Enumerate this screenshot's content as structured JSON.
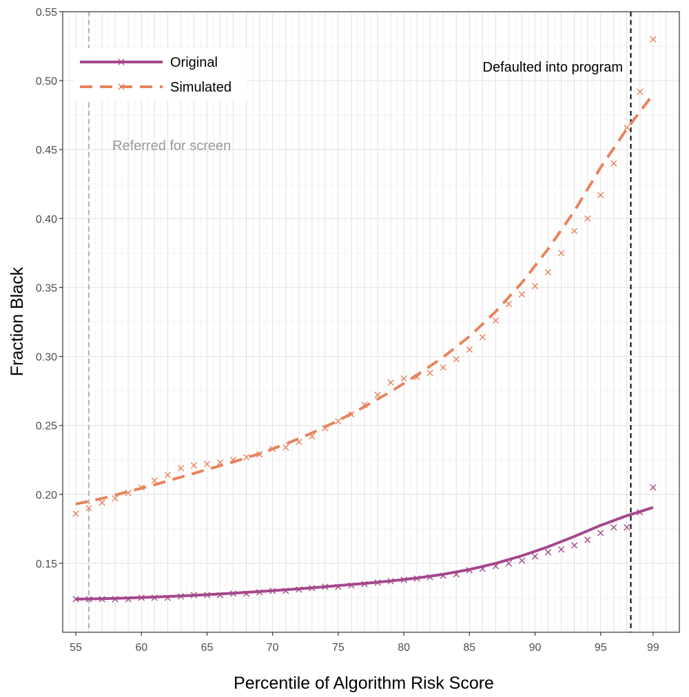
{
  "chart_data": {
    "type": "line",
    "xlabel": "Percentile of Algorithm Risk Score",
    "ylabel": "Fraction Black",
    "xlim": [
      54,
      101
    ],
    "ylim": [
      0.1,
      0.55
    ],
    "x_ticks": [
      55,
      60,
      65,
      70,
      75,
      80,
      85,
      90,
      95,
      99
    ],
    "y_ticks": [
      0.15,
      0.2,
      0.25,
      0.3,
      0.35,
      0.4,
      0.45,
      0.5,
      0.55
    ],
    "y_tick_labels": [
      "0.15",
      "0.20",
      "0.25",
      "0.30",
      "0.35",
      "0.40",
      "0.45",
      "0.50",
      "0.55"
    ],
    "grid": true,
    "legend_position": "top-left",
    "annotations": [
      {
        "label": "Referred for screen",
        "x": 56,
        "color": "#999999",
        "line_color": "#aaaaaa"
      },
      {
        "label": "Defaulted into program",
        "x": 97.3,
        "color": "#000000",
        "line_color": "#000000"
      }
    ],
    "series": [
      {
        "name": "Original",
        "color": "#a4478c",
        "line_style": "solid",
        "points": [
          [
            55,
            0.124
          ],
          [
            56,
            0.124
          ],
          [
            57,
            0.124
          ],
          [
            58,
            0.124
          ],
          [
            59,
            0.124
          ],
          [
            60,
            0.125
          ],
          [
            61,
            0.125
          ],
          [
            62,
            0.125
          ],
          [
            63,
            0.126
          ],
          [
            64,
            0.127
          ],
          [
            65,
            0.127
          ],
          [
            66,
            0.127
          ],
          [
            67,
            0.128
          ],
          [
            68,
            0.128
          ],
          [
            69,
            0.129
          ],
          [
            70,
            0.13
          ],
          [
            71,
            0.13
          ],
          [
            72,
            0.131
          ],
          [
            73,
            0.132
          ],
          [
            74,
            0.133
          ],
          [
            75,
            0.133
          ],
          [
            76,
            0.134
          ],
          [
            77,
            0.135
          ],
          [
            78,
            0.136
          ],
          [
            79,
            0.137
          ],
          [
            80,
            0.138
          ],
          [
            81,
            0.139
          ],
          [
            82,
            0.14
          ],
          [
            83,
            0.141
          ],
          [
            84,
            0.142
          ],
          [
            85,
            0.145
          ],
          [
            86,
            0.146
          ],
          [
            87,
            0.148
          ],
          [
            88,
            0.15
          ],
          [
            89,
            0.152
          ],
          [
            90,
            0.155
          ],
          [
            91,
            0.158
          ],
          [
            92,
            0.16
          ],
          [
            93,
            0.163
          ],
          [
            94,
            0.167
          ],
          [
            95,
            0.172
          ],
          [
            96,
            0.176
          ],
          [
            97,
            0.176
          ],
          [
            98,
            0.187
          ],
          [
            99,
            0.205
          ]
        ],
        "fit": [
          [
            55,
            0.124
          ],
          [
            57,
            0.1243
          ],
          [
            59,
            0.1248
          ],
          [
            61,
            0.1255
          ],
          [
            63,
            0.1263
          ],
          [
            65,
            0.1272
          ],
          [
            67,
            0.1283
          ],
          [
            69,
            0.1295
          ],
          [
            71,
            0.1308
          ],
          [
            73,
            0.1322
          ],
          [
            75,
            0.1338
          ],
          [
            77,
            0.1354
          ],
          [
            79,
            0.1372
          ],
          [
            81,
            0.1393
          ],
          [
            83,
            0.142
          ],
          [
            85,
            0.1455
          ],
          [
            87,
            0.15
          ],
          [
            89,
            0.1555
          ],
          [
            91,
            0.162
          ],
          [
            93,
            0.1695
          ],
          [
            95,
            0.1775
          ],
          [
            97,
            0.1845
          ],
          [
            99,
            0.1905
          ]
        ]
      },
      {
        "name": "Simulated",
        "color": "#e8825b",
        "line_style": "dashed",
        "points": [
          [
            55,
            0.186
          ],
          [
            56,
            0.19
          ],
          [
            57,
            0.194
          ],
          [
            58,
            0.197
          ],
          [
            59,
            0.201
          ],
          [
            60,
            0.205
          ],
          [
            61,
            0.21
          ],
          [
            62,
            0.214
          ],
          [
            63,
            0.219
          ],
          [
            64,
            0.221
          ],
          [
            65,
            0.222
          ],
          [
            66,
            0.223
          ],
          [
            67,
            0.225
          ],
          [
            68,
            0.227
          ],
          [
            69,
            0.229
          ],
          [
            70,
            0.233
          ],
          [
            71,
            0.234
          ],
          [
            72,
            0.238
          ],
          [
            73,
            0.242
          ],
          [
            74,
            0.248
          ],
          [
            75,
            0.253
          ],
          [
            76,
            0.258
          ],
          [
            77,
            0.265
          ],
          [
            78,
            0.272
          ],
          [
            79,
            0.281
          ],
          [
            80,
            0.284
          ],
          [
            81,
            0.285
          ],
          [
            82,
            0.288
          ],
          [
            83,
            0.292
          ],
          [
            84,
            0.298
          ],
          [
            85,
            0.305
          ],
          [
            86,
            0.314
          ],
          [
            87,
            0.326
          ],
          [
            88,
            0.338
          ],
          [
            89,
            0.345
          ],
          [
            90,
            0.351
          ],
          [
            91,
            0.361
          ],
          [
            92,
            0.375
          ],
          [
            93,
            0.391
          ],
          [
            94,
            0.4
          ],
          [
            95,
            0.417
          ],
          [
            96,
            0.44
          ],
          [
            97,
            0.466
          ],
          [
            98,
            0.492
          ],
          [
            99,
            0.53
          ]
        ],
        "fit": [
          [
            55,
            0.193
          ],
          [
            57,
            0.197
          ],
          [
            59,
            0.202
          ],
          [
            61,
            0.207
          ],
          [
            63,
            0.2125
          ],
          [
            65,
            0.218
          ],
          [
            67,
            0.2235
          ],
          [
            69,
            0.2295
          ],
          [
            71,
            0.2365
          ],
          [
            73,
            0.2445
          ],
          [
            75,
            0.2535
          ],
          [
            77,
            0.2635
          ],
          [
            79,
            0.2745
          ],
          [
            81,
            0.2865
          ],
          [
            83,
            0.2995
          ],
          [
            85,
            0.3145
          ],
          [
            87,
            0.3325
          ],
          [
            89,
            0.3535
          ],
          [
            91,
            0.378
          ],
          [
            93,
            0.4055
          ],
          [
            95,
            0.437
          ],
          [
            97,
            0.465
          ],
          [
            99,
            0.49
          ]
        ]
      }
    ]
  }
}
